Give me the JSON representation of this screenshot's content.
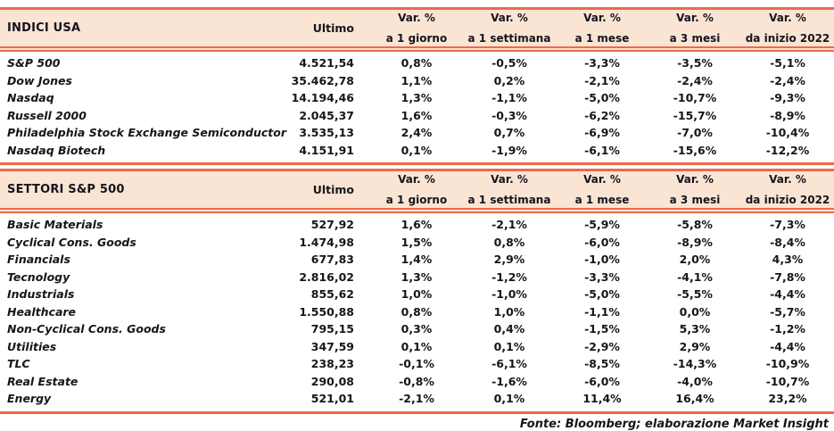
{
  "palette": {
    "accent_line": "#ec6a4b",
    "header_bg": "#fae5d4",
    "text_color": "#15151c"
  },
  "columns": {
    "ultimo": "Ultimo",
    "var_label": "Var. %",
    "periods": [
      "a 1 giorno",
      "a 1 settimana",
      "a 1 mese",
      "a 3 mesi",
      "da inizio 2022"
    ]
  },
  "sections": [
    {
      "title": "INDICI USA",
      "rows": [
        {
          "name": "S&P 500",
          "ultimo": "4.521,54",
          "vars": [
            "0,8%",
            "-0,5%",
            "-3,3%",
            "-3,5%",
            "-5,1%"
          ]
        },
        {
          "name": "Dow Jones",
          "ultimo": "35.462,78",
          "vars": [
            "1,1%",
            "0,2%",
            "-2,1%",
            "-2,4%",
            "-2,4%"
          ]
        },
        {
          "name": "Nasdaq",
          "ultimo": "14.194,46",
          "vars": [
            "1,3%",
            "-1,1%",
            "-5,0%",
            "-10,7%",
            "-9,3%"
          ]
        },
        {
          "name": "Russell 2000",
          "ultimo": "2.045,37",
          "vars": [
            "1,6%",
            "-0,3%",
            "-6,2%",
            "-15,7%",
            "-8,9%"
          ]
        },
        {
          "name": "Philadelphia Stock Exchange Semiconductor",
          "ultimo": "3.535,13",
          "vars": [
            "2,4%",
            "0,7%",
            "-6,9%",
            "-7,0%",
            "-10,4%"
          ]
        },
        {
          "name": "Nasdaq Biotech",
          "ultimo": "4.151,91",
          "vars": [
            "0,1%",
            "-1,9%",
            "-6,1%",
            "-15,6%",
            "-12,2%"
          ]
        }
      ]
    },
    {
      "title": "SETTORI S&P 500",
      "rows": [
        {
          "name": "Basic Materials",
          "ultimo": "527,92",
          "vars": [
            "1,6%",
            "-2,1%",
            "-5,9%",
            "-5,8%",
            "-7,3%"
          ]
        },
        {
          "name": "Cyclical Cons. Goods",
          "ultimo": "1.474,98",
          "vars": [
            "1,5%",
            "0,8%",
            "-6,0%",
            "-8,9%",
            "-8,4%"
          ]
        },
        {
          "name": "Financials",
          "ultimo": "677,83",
          "vars": [
            "1,4%",
            "2,9%",
            "-1,0%",
            "2,0%",
            "4,3%"
          ]
        },
        {
          "name": "Tecnology",
          "ultimo": "2.816,02",
          "vars": [
            "1,3%",
            "-1,2%",
            "-3,3%",
            "-4,1%",
            "-7,8%"
          ]
        },
        {
          "name": "Industrials",
          "ultimo": "855,62",
          "vars": [
            "1,0%",
            "-1,0%",
            "-5,0%",
            "-5,5%",
            "-4,4%"
          ]
        },
        {
          "name": "Healthcare",
          "ultimo": "1.550,88",
          "vars": [
            "0,8%",
            "1,0%",
            "-1,1%",
            "0,0%",
            "-5,7%"
          ]
        },
        {
          "name": "Non-Cyclical Cons. Goods",
          "ultimo": "795,15",
          "vars": [
            "0,3%",
            "0,4%",
            "-1,5%",
            "5,3%",
            "-1,2%"
          ]
        },
        {
          "name": "Utilities",
          "ultimo": "347,59",
          "vars": [
            "0,1%",
            "0,1%",
            "-2,9%",
            "2,9%",
            "-4,4%"
          ]
        },
        {
          "name": "TLC",
          "ultimo": "238,23",
          "vars": [
            "-0,1%",
            "-6,1%",
            "-8,5%",
            "-14,3%",
            "-10,9%"
          ]
        },
        {
          "name": "Real Estate",
          "ultimo": "290,08",
          "vars": [
            "-0,8%",
            "-1,6%",
            "-6,0%",
            "-4,0%",
            "-10,7%"
          ]
        },
        {
          "name": "Energy",
          "ultimo": "521,01",
          "vars": [
            "-2,1%",
            "0,1%",
            "11,4%",
            "16,4%",
            "23,2%"
          ]
        }
      ]
    }
  ],
  "footer": "Fonte: Bloomberg; elaborazione Market Insight"
}
